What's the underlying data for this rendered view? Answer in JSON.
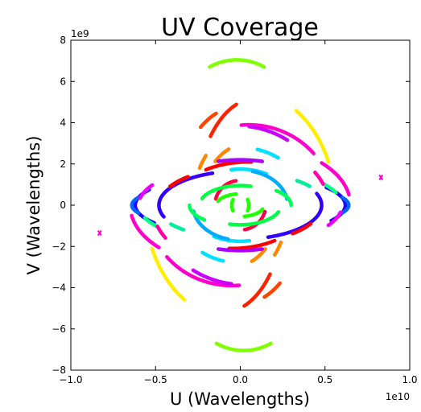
{
  "chart_data": {
    "type": "scatter",
    "title": "UV Coverage",
    "xlabel": "U (Wavelengths)",
    "ylabel": "V (Wavelengths)",
    "x_multiplier": "1e10",
    "y_multiplier": "1e9",
    "xlim": [
      -1.0,
      1.0
    ],
    "ylim": [
      -8,
      8
    ],
    "x_ticks": [
      -1.0,
      -0.5,
      0.0,
      0.5,
      1.0
    ],
    "x_tick_labels": [
      "−1.0",
      "−0.5",
      "0.0",
      "0.5",
      "1.0"
    ],
    "y_ticks": [
      -8,
      -6,
      -4,
      -2,
      0,
      2,
      4,
      6,
      8
    ],
    "y_tick_labels": [
      "−8",
      "−6",
      "−4",
      "−2",
      "0",
      "2",
      "4",
      "6",
      "8"
    ],
    "grid": false,
    "legend": "none",
    "arcs": [
      {
        "color": "#80ff00",
        "cx": -0.02,
        "cy": 0,
        "rx": 0.52,
        "ry": 7.05,
        "start": 72,
        "end": 108
      },
      {
        "color": "#80ff00",
        "cx": 0.02,
        "cy": 0,
        "rx": 0.52,
        "ry": 7.05,
        "start": 252,
        "end": 288
      },
      {
        "color": "#ffee00",
        "cx": 0.02,
        "cy": 0,
        "rx": 0.54,
        "ry": 5.6,
        "start": 55,
        "end": 22
      },
      {
        "color": "#ffee00",
        "cx": -0.02,
        "cy": 0,
        "rx": 0.54,
        "ry": 5.6,
        "start": 235,
        "end": 202
      },
      {
        "color": "#ff00cc",
        "cx": 0.05,
        "cy": 0,
        "rx": 0.5,
        "ry": 3.9,
        "start": 40,
        "end": 95
      },
      {
        "color": "#ff00cc",
        "cx": -0.05,
        "cy": 0,
        "rx": 0.5,
        "ry": 3.9,
        "start": 220,
        "end": 275
      },
      {
        "color": "#ff00cc",
        "cx": 0.07,
        "cy": 0,
        "rx": 0.58,
        "ry": 2.9,
        "start": 10,
        "end": 45
      },
      {
        "color": "#ff00cc",
        "cx": -0.07,
        "cy": 0,
        "rx": 0.58,
        "ry": 2.9,
        "start": 190,
        "end": 225
      },
      {
        "color": "#ff8800",
        "cx": 0.02,
        "cy": 0,
        "rx": 0.3,
        "ry": 3.6,
        "start": 138,
        "end": 150
      },
      {
        "color": "#ff8800",
        "cx": -0.02,
        "cy": 0,
        "rx": 0.3,
        "ry": 3.6,
        "start": 318,
        "end": 330
      },
      {
        "color": "#ff8800",
        "cx": 0.05,
        "cy": 0,
        "rx": 0.28,
        "ry": 3.0,
        "start": 115,
        "end": 135
      },
      {
        "color": "#ff8800",
        "cx": -0.05,
        "cy": 0,
        "rx": 0.28,
        "ry": 3.0,
        "start": 295,
        "end": 315
      },
      {
        "color": "#ff2200",
        "cx": 0.1,
        "cy": 0,
        "rx": 0.36,
        "ry": 5.2,
        "start": 110,
        "end": 140
      },
      {
        "color": "#ff2200",
        "cx": -0.1,
        "cy": 0,
        "rx": 0.36,
        "ry": 5.2,
        "start": 290,
        "end": 320
      },
      {
        "color": "#ff0000",
        "cx": 0.05,
        "cy": 0,
        "rx": 0.44,
        "ry": 2.1,
        "start": 88,
        "end": 125
      },
      {
        "color": "#ff0000",
        "cx": -0.05,
        "cy": 0,
        "rx": 0.44,
        "ry": 2.1,
        "start": 268,
        "end": 305
      },
      {
        "color": "#ff0044",
        "cx": 0.0,
        "cy": 0,
        "rx": 0.15,
        "ry": 1.2,
        "start": 100,
        "end": 165
      },
      {
        "color": "#ff0044",
        "cx": 0.0,
        "cy": 0,
        "rx": 0.15,
        "ry": 1.2,
        "start": 280,
        "end": 345
      },
      {
        "color": "#00e0ff",
        "cx": 0.0,
        "cy": 0,
        "rx": 0.39,
        "ry": 2.8,
        "start": 55,
        "end": 75
      },
      {
        "color": "#00e0ff",
        "cx": 0.0,
        "cy": 0,
        "rx": 0.39,
        "ry": 2.8,
        "start": 235,
        "end": 255
      },
      {
        "color": "#00e0ff",
        "cx": 0.0,
        "cy": 0,
        "rx": 0.31,
        "ry": 1.75,
        "start": 60,
        "end": 100
      },
      {
        "color": "#00e0ff",
        "cx": 0.0,
        "cy": 0,
        "rx": 0.31,
        "ry": 1.75,
        "start": 240,
        "end": 280
      },
      {
        "color": "#00aaff",
        "cx": 0.0,
        "cy": 0,
        "rx": 0.28,
        "ry": 1.7,
        "start": 10,
        "end": 75
      },
      {
        "color": "#00aaff",
        "cx": 0.0,
        "cy": 0,
        "rx": 0.28,
        "ry": 1.7,
        "start": 190,
        "end": 255
      },
      {
        "color": "#00ff44",
        "cx": 0.0,
        "cy": 0,
        "rx": 0.24,
        "ry": 0.95,
        "start": 255,
        "end": 340
      },
      {
        "color": "#00ff44",
        "cx": 0.0,
        "cy": 0,
        "rx": 0.24,
        "ry": 0.95,
        "start": 75,
        "end": 160
      },
      {
        "color": "#22ff00",
        "cx": 0.0,
        "cy": 0,
        "rx": 0.14,
        "ry": 0.55,
        "start": 280,
        "end": 340
      },
      {
        "color": "#22ff00",
        "cx": 0.0,
        "cy": 0,
        "rx": 0.14,
        "ry": 0.55,
        "start": 100,
        "end": 160
      },
      {
        "color": "#22ff00",
        "cx": 0.0,
        "cy": 0,
        "rx": 0.05,
        "ry": 0.55,
        "start": 150,
        "end": 210
      },
      {
        "color": "#22ff00",
        "cx": 0.0,
        "cy": 0,
        "rx": 0.05,
        "ry": 0.55,
        "start": 330,
        "end": 30
      },
      {
        "color": "#3300ff",
        "cx": 0.0,
        "cy": 0,
        "rx": 0.48,
        "ry": 1.65,
        "start": 110,
        "end": 200
      },
      {
        "color": "#3300ff",
        "cx": 0.0,
        "cy": 0,
        "rx": 0.48,
        "ry": 1.65,
        "start": 290,
        "end": 20
      },
      {
        "color": "#aa00ff",
        "cx": 0.0,
        "cy": 0,
        "rx": 0.5,
        "ry": 2.2,
        "start": 255,
        "end": 285
      },
      {
        "color": "#aa00ff",
        "cx": 0.0,
        "cy": 0,
        "rx": 0.5,
        "ry": 2.2,
        "start": 75,
        "end": 105
      },
      {
        "color": "#cc00ff",
        "cx": 0.02,
        "cy": 0,
        "rx": 0.52,
        "ry": 3.85,
        "start": 235,
        "end": 262
      },
      {
        "color": "#cc00ff",
        "cx": -0.02,
        "cy": 0,
        "rx": 0.52,
        "ry": 3.85,
        "start": 55,
        "end": 82
      },
      {
        "color": "#2200ff",
        "cx": 0.0,
        "cy": 0,
        "rx": 0.62,
        "ry": 1.5,
        "start": 150,
        "end": 215
      },
      {
        "color": "#2200ff",
        "cx": 0.0,
        "cy": 0,
        "rx": 0.62,
        "ry": 1.5,
        "start": 330,
        "end": 35
      },
      {
        "color": "#0066ff",
        "cx": 0.0,
        "cy": 0,
        "rx": 0.64,
        "ry": 1.1,
        "start": 160,
        "end": 200
      },
      {
        "color": "#0066ff",
        "cx": 0.0,
        "cy": 0,
        "rx": 0.64,
        "ry": 1.1,
        "start": 340,
        "end": 20
      },
      {
        "color": "#00ff88",
        "cx": 0.0,
        "cy": 0,
        "rx": 0.6,
        "ry": 1.8,
        "start": 200,
        "end": 215
      },
      {
        "color": "#00ff88",
        "cx": 0.0,
        "cy": 0,
        "rx": 0.6,
        "ry": 1.8,
        "start": 20,
        "end": 35
      },
      {
        "color": "#00ff55",
        "cx": 0.0,
        "cy": 0,
        "rx": 0.3,
        "ry": 1.0,
        "start": 180,
        "end": 225
      },
      {
        "color": "#00ff55",
        "cx": 0.0,
        "cy": 0,
        "rx": 0.3,
        "ry": 1.0,
        "start": 0,
        "end": 45
      },
      {
        "color": "#ee00ff",
        "cx": 0.0,
        "cy": 0,
        "rx": 0.6,
        "ry": 1.95,
        "start": 150,
        "end": 170
      },
      {
        "color": "#ee00ff",
        "cx": 0.0,
        "cy": 0,
        "rx": 0.6,
        "ry": 1.95,
        "start": 330,
        "end": 350
      },
      {
        "color": "#ff00aa",
        "cx": 0.0,
        "cy": 0,
        "rx": 0.52,
        "ry": 3.0,
        "start": 200,
        "end": 212
      },
      {
        "color": "#ff00aa",
        "cx": 0.0,
        "cy": 0,
        "rx": 0.52,
        "ry": 3.0,
        "start": 20,
        "end": 32
      },
      {
        "color": "#ff0000",
        "cx": 0.0,
        "cy": 0,
        "rx": 0.48,
        "ry": 1.8,
        "start": 310,
        "end": 330
      },
      {
        "color": "#ff0000",
        "cx": 0.0,
        "cy": 0,
        "rx": 0.48,
        "ry": 1.8,
        "start": 130,
        "end": 150
      },
      {
        "color": "#00ee99",
        "cx": 0.0,
        "cy": 0,
        "rx": 0.5,
        "ry": 1.6,
        "start": 215,
        "end": 228
      },
      {
        "color": "#00ee99",
        "cx": 0.0,
        "cy": 0,
        "rx": 0.5,
        "ry": 1.6,
        "start": 35,
        "end": 48
      },
      {
        "color": "#ff4400",
        "cx": 0.0,
        "cy": 0,
        "rx": 0.38,
        "ry": 4.8,
        "start": 292,
        "end": 308
      },
      {
        "color": "#ff4400",
        "cx": 0.0,
        "cy": 0,
        "rx": 0.38,
        "ry": 4.8,
        "start": 112,
        "end": 128
      }
    ],
    "points": [
      {
        "color": "#ff00cc",
        "x": 0.83,
        "y": 1.35
      },
      {
        "color": "#ff00cc",
        "x": -0.83,
        "y": -1.35
      }
    ]
  }
}
